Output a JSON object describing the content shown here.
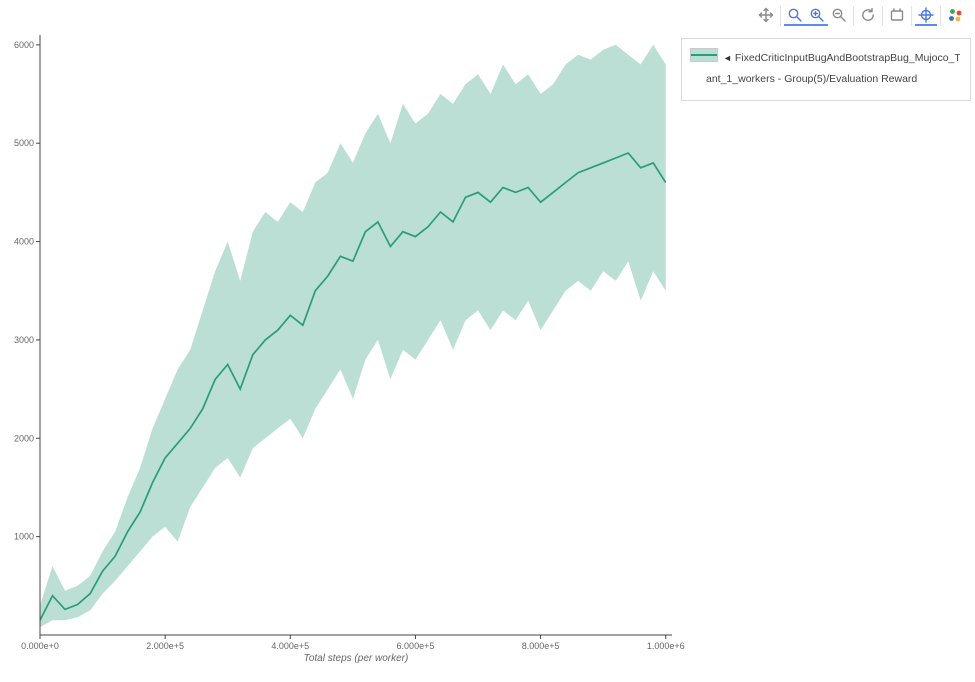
{
  "modebar": {
    "icons": [
      "pan",
      "box-zoom",
      "zoom-in",
      "zoom-out",
      "autoscale",
      "reset-axes",
      "toggle-spikelines",
      "plotly-logo"
    ],
    "active": [
      "box-zoom",
      "zoom-in",
      "toggle-spikelines"
    ]
  },
  "legend": {
    "toggle": "◄",
    "line1": "FixedCriticInputBugAndBootstrapBug_Mujoco_TD3___",
    "line2": "ant_1_workers - Group(5)/Evaluation Reward",
    "full_name": "FixedCriticInputBugAndBootstrapBug_Mujoco_TD3___ant_1_workers - Group(5)/Evaluation Reward"
  },
  "chart_data": {
    "type": "line",
    "title": "",
    "xlabel": "Total steps (per worker)",
    "ylabel": "",
    "xlim": [
      0,
      1010000
    ],
    "ylim": [
      0,
      6100
    ],
    "grid": false,
    "legend_position": "right-top-outside",
    "x_ticks": {
      "values": [
        0,
        200000,
        400000,
        600000,
        800000,
        1000000
      ],
      "labels": [
        "0.000e+0",
        "2.000e+5",
        "4.000e+5",
        "6.000e+5",
        "8.000e+5",
        "1.000e+6"
      ]
    },
    "y_ticks": {
      "values": [
        1000,
        2000,
        3000,
        4000,
        5000,
        6000
      ],
      "labels": [
        "1000",
        "2000",
        "3000",
        "4000",
        "5000",
        "6000"
      ]
    },
    "series": [
      {
        "name": "FixedCriticInputBugAndBootstrapBug_Mujoco_TD3___ant_1_workers - Group(5)/Evaluation Reward",
        "x": [
          0,
          20000,
          40000,
          60000,
          80000,
          100000,
          120000,
          140000,
          160000,
          180000,
          200000,
          220000,
          240000,
          260000,
          280000,
          300000,
          320000,
          340000,
          360000,
          380000,
          400000,
          420000,
          440000,
          460000,
          480000,
          500000,
          520000,
          540000,
          560000,
          580000,
          600000,
          620000,
          640000,
          660000,
          680000,
          700000,
          720000,
          740000,
          760000,
          780000,
          800000,
          820000,
          840000,
          860000,
          880000,
          900000,
          920000,
          940000,
          960000,
          980000,
          1000000
        ],
        "mean": [
          150,
          400,
          260,
          310,
          420,
          650,
          800,
          1050,
          1250,
          1550,
          1800,
          1950,
          2100,
          2300,
          2600,
          2750,
          2500,
          2850,
          3000,
          3100,
          3250,
          3150,
          3500,
          3650,
          3850,
          3800,
          4100,
          4200,
          3950,
          4100,
          4050,
          4150,
          4300,
          4200,
          4450,
          4500,
          4400,
          4550,
          4500,
          4550,
          4400,
          4500,
          4600,
          4700,
          4750,
          4800,
          4850,
          4900,
          4750,
          4800,
          4600
        ],
        "upper": [
          300,
          700,
          450,
          500,
          600,
          850,
          1050,
          1400,
          1700,
          2100,
          2400,
          2700,
          2900,
          3300,
          3700,
          4000,
          3600,
          4100,
          4300,
          4200,
          4400,
          4300,
          4600,
          4700,
          5000,
          4800,
          5100,
          5300,
          5000,
          5400,
          5200,
          5300,
          5500,
          5400,
          5600,
          5700,
          5500,
          5800,
          5600,
          5700,
          5500,
          5600,
          5800,
          5900,
          5850,
          5950,
          6000,
          5900,
          5800,
          6000,
          5800
        ],
        "lower": [
          80,
          150,
          150,
          180,
          250,
          420,
          550,
          700,
          850,
          1000,
          1100,
          950,
          1300,
          1500,
          1700,
          1800,
          1600,
          1900,
          2000,
          2100,
          2200,
          2000,
          2300,
          2500,
          2700,
          2400,
          2800,
          3000,
          2600,
          2900,
          2800,
          3000,
          3200,
          2900,
          3200,
          3300,
          3100,
          3300,
          3200,
          3400,
          3100,
          3300,
          3500,
          3600,
          3500,
          3700,
          3600,
          3800,
          3400,
          3700,
          3500
        ]
      }
    ],
    "colors": {
      "line": "#2a9d78",
      "band": "rgba(42,157,120,0.32)",
      "axis": "#444444",
      "tick_text": "#666666"
    }
  }
}
